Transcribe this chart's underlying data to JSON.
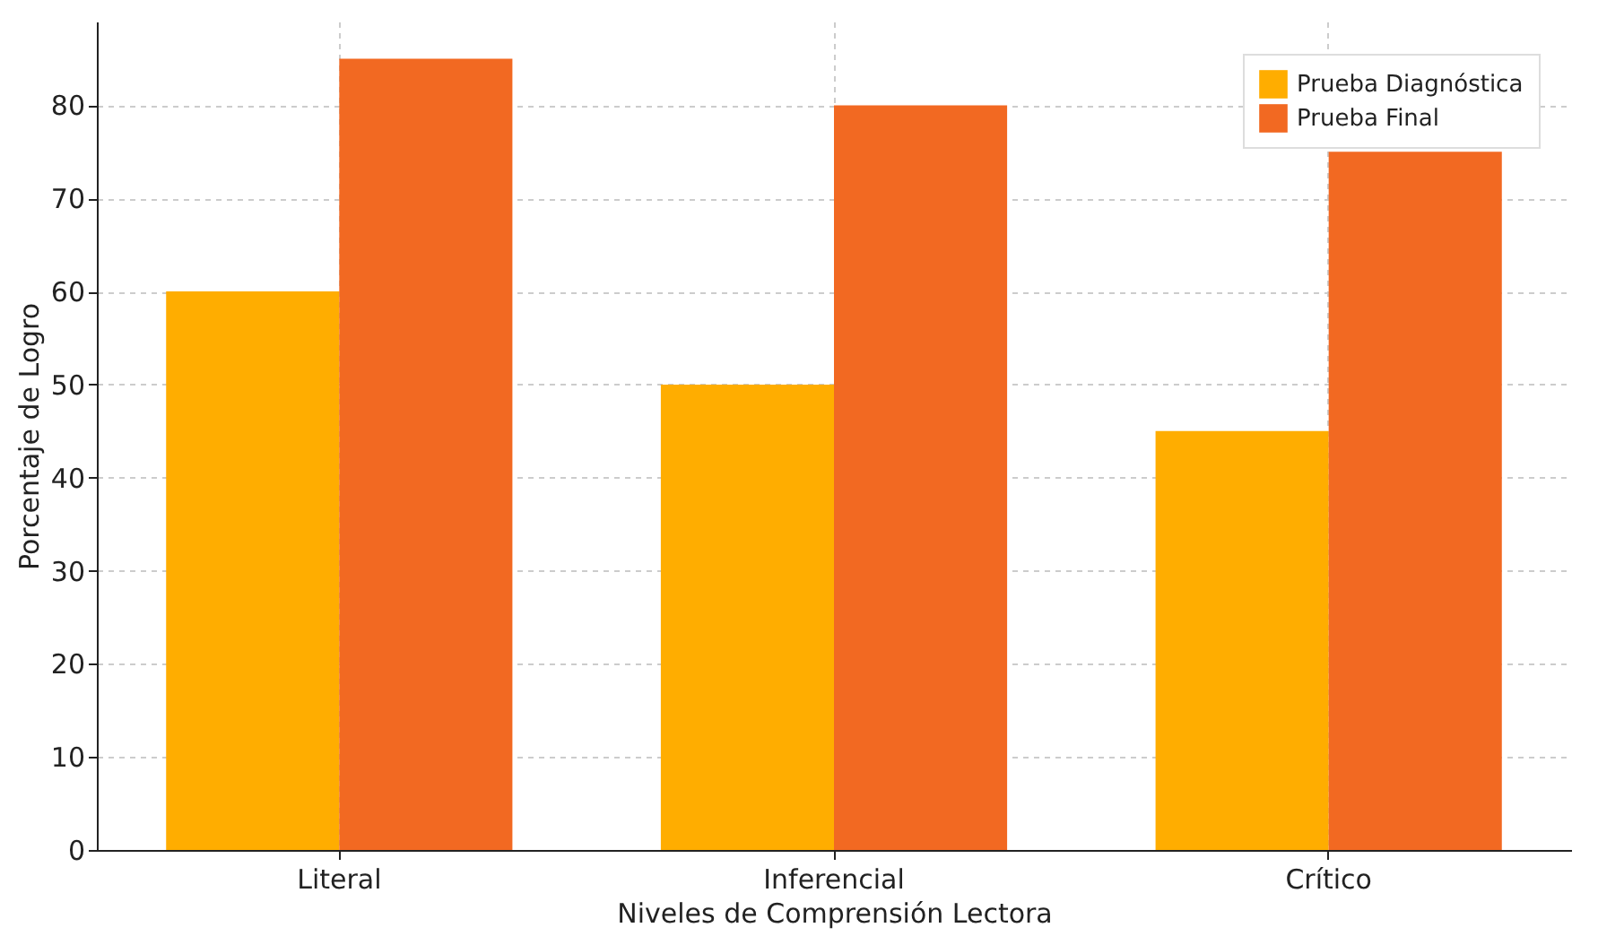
{
  "chart_data": {
    "type": "bar",
    "xlabel": "Niveles de Comprensión Lectora",
    "ylabel": "Porcentaje de Logro",
    "categories": [
      "Literal",
      "Inferencial",
      "Crítico"
    ],
    "series": [
      {
        "name": "Prueba Diagnóstica",
        "color": "#ffad00",
        "values": [
          60,
          50,
          45
        ]
      },
      {
        "name": "Prueba Final",
        "color": "#f26922",
        "values": [
          85,
          80,
          75
        ]
      }
    ],
    "ylim": [
      0,
      89
    ],
    "yticks": [
      0,
      10,
      20,
      30,
      40,
      50,
      60,
      70,
      80
    ],
    "grid": true,
    "legend": "top right"
  }
}
